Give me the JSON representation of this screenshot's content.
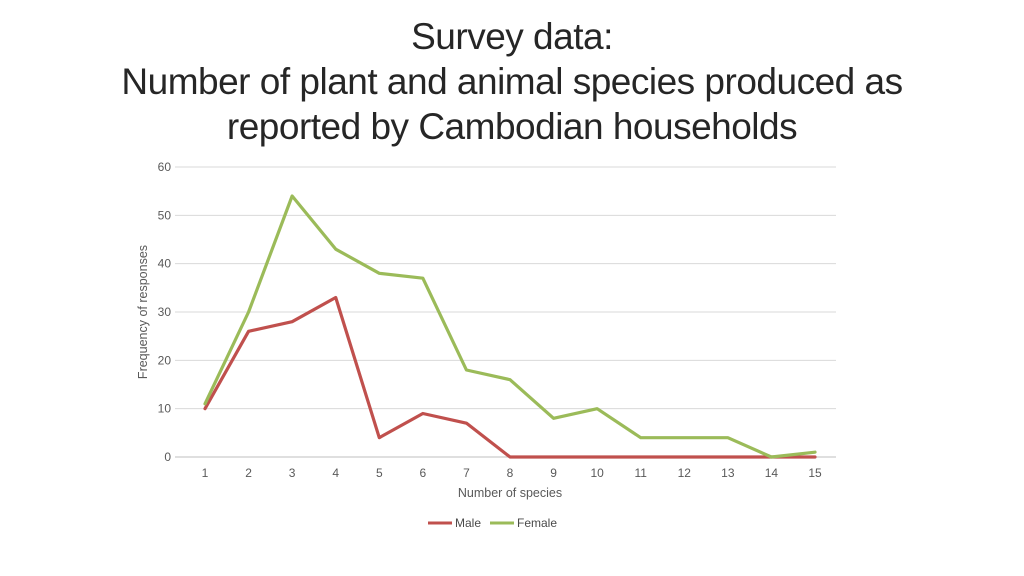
{
  "slide": {
    "title_lines": [
      "Survey data:",
      "Number of plant and animal species produced as",
      "reported by Cambodian households"
    ]
  },
  "chart_data": {
    "type": "line",
    "title": "Survey data: Number of plant and animal species produced as reported by Cambodian households",
    "xlabel": "Number of species",
    "ylabel": "Frequency of responses",
    "categories": [
      1,
      2,
      3,
      4,
      5,
      6,
      7,
      8,
      9,
      10,
      11,
      12,
      13,
      14,
      15
    ],
    "series": [
      {
        "name": "Male",
        "color": "#C0504D",
        "values": [
          10,
          26,
          28,
          33,
          4,
          9,
          7,
          0,
          0,
          0,
          0,
          0,
          0,
          0,
          0
        ]
      },
      {
        "name": "Female",
        "color": "#9BBB59",
        "values": [
          11,
          30,
          54,
          43,
          38,
          37,
          18,
          16,
          8,
          10,
          4,
          4,
          4,
          0,
          1
        ]
      }
    ],
    "ylim": [
      0,
      60
    ],
    "yticks": [
      0,
      10,
      20,
      30,
      40,
      50,
      60
    ],
    "grid": true,
    "legend_position": "bottom",
    "colors": {
      "gridline": "#d9d9d9",
      "axis_line": "#bfbfbf",
      "tick_text": "#595959",
      "title_text": "#262626"
    }
  }
}
